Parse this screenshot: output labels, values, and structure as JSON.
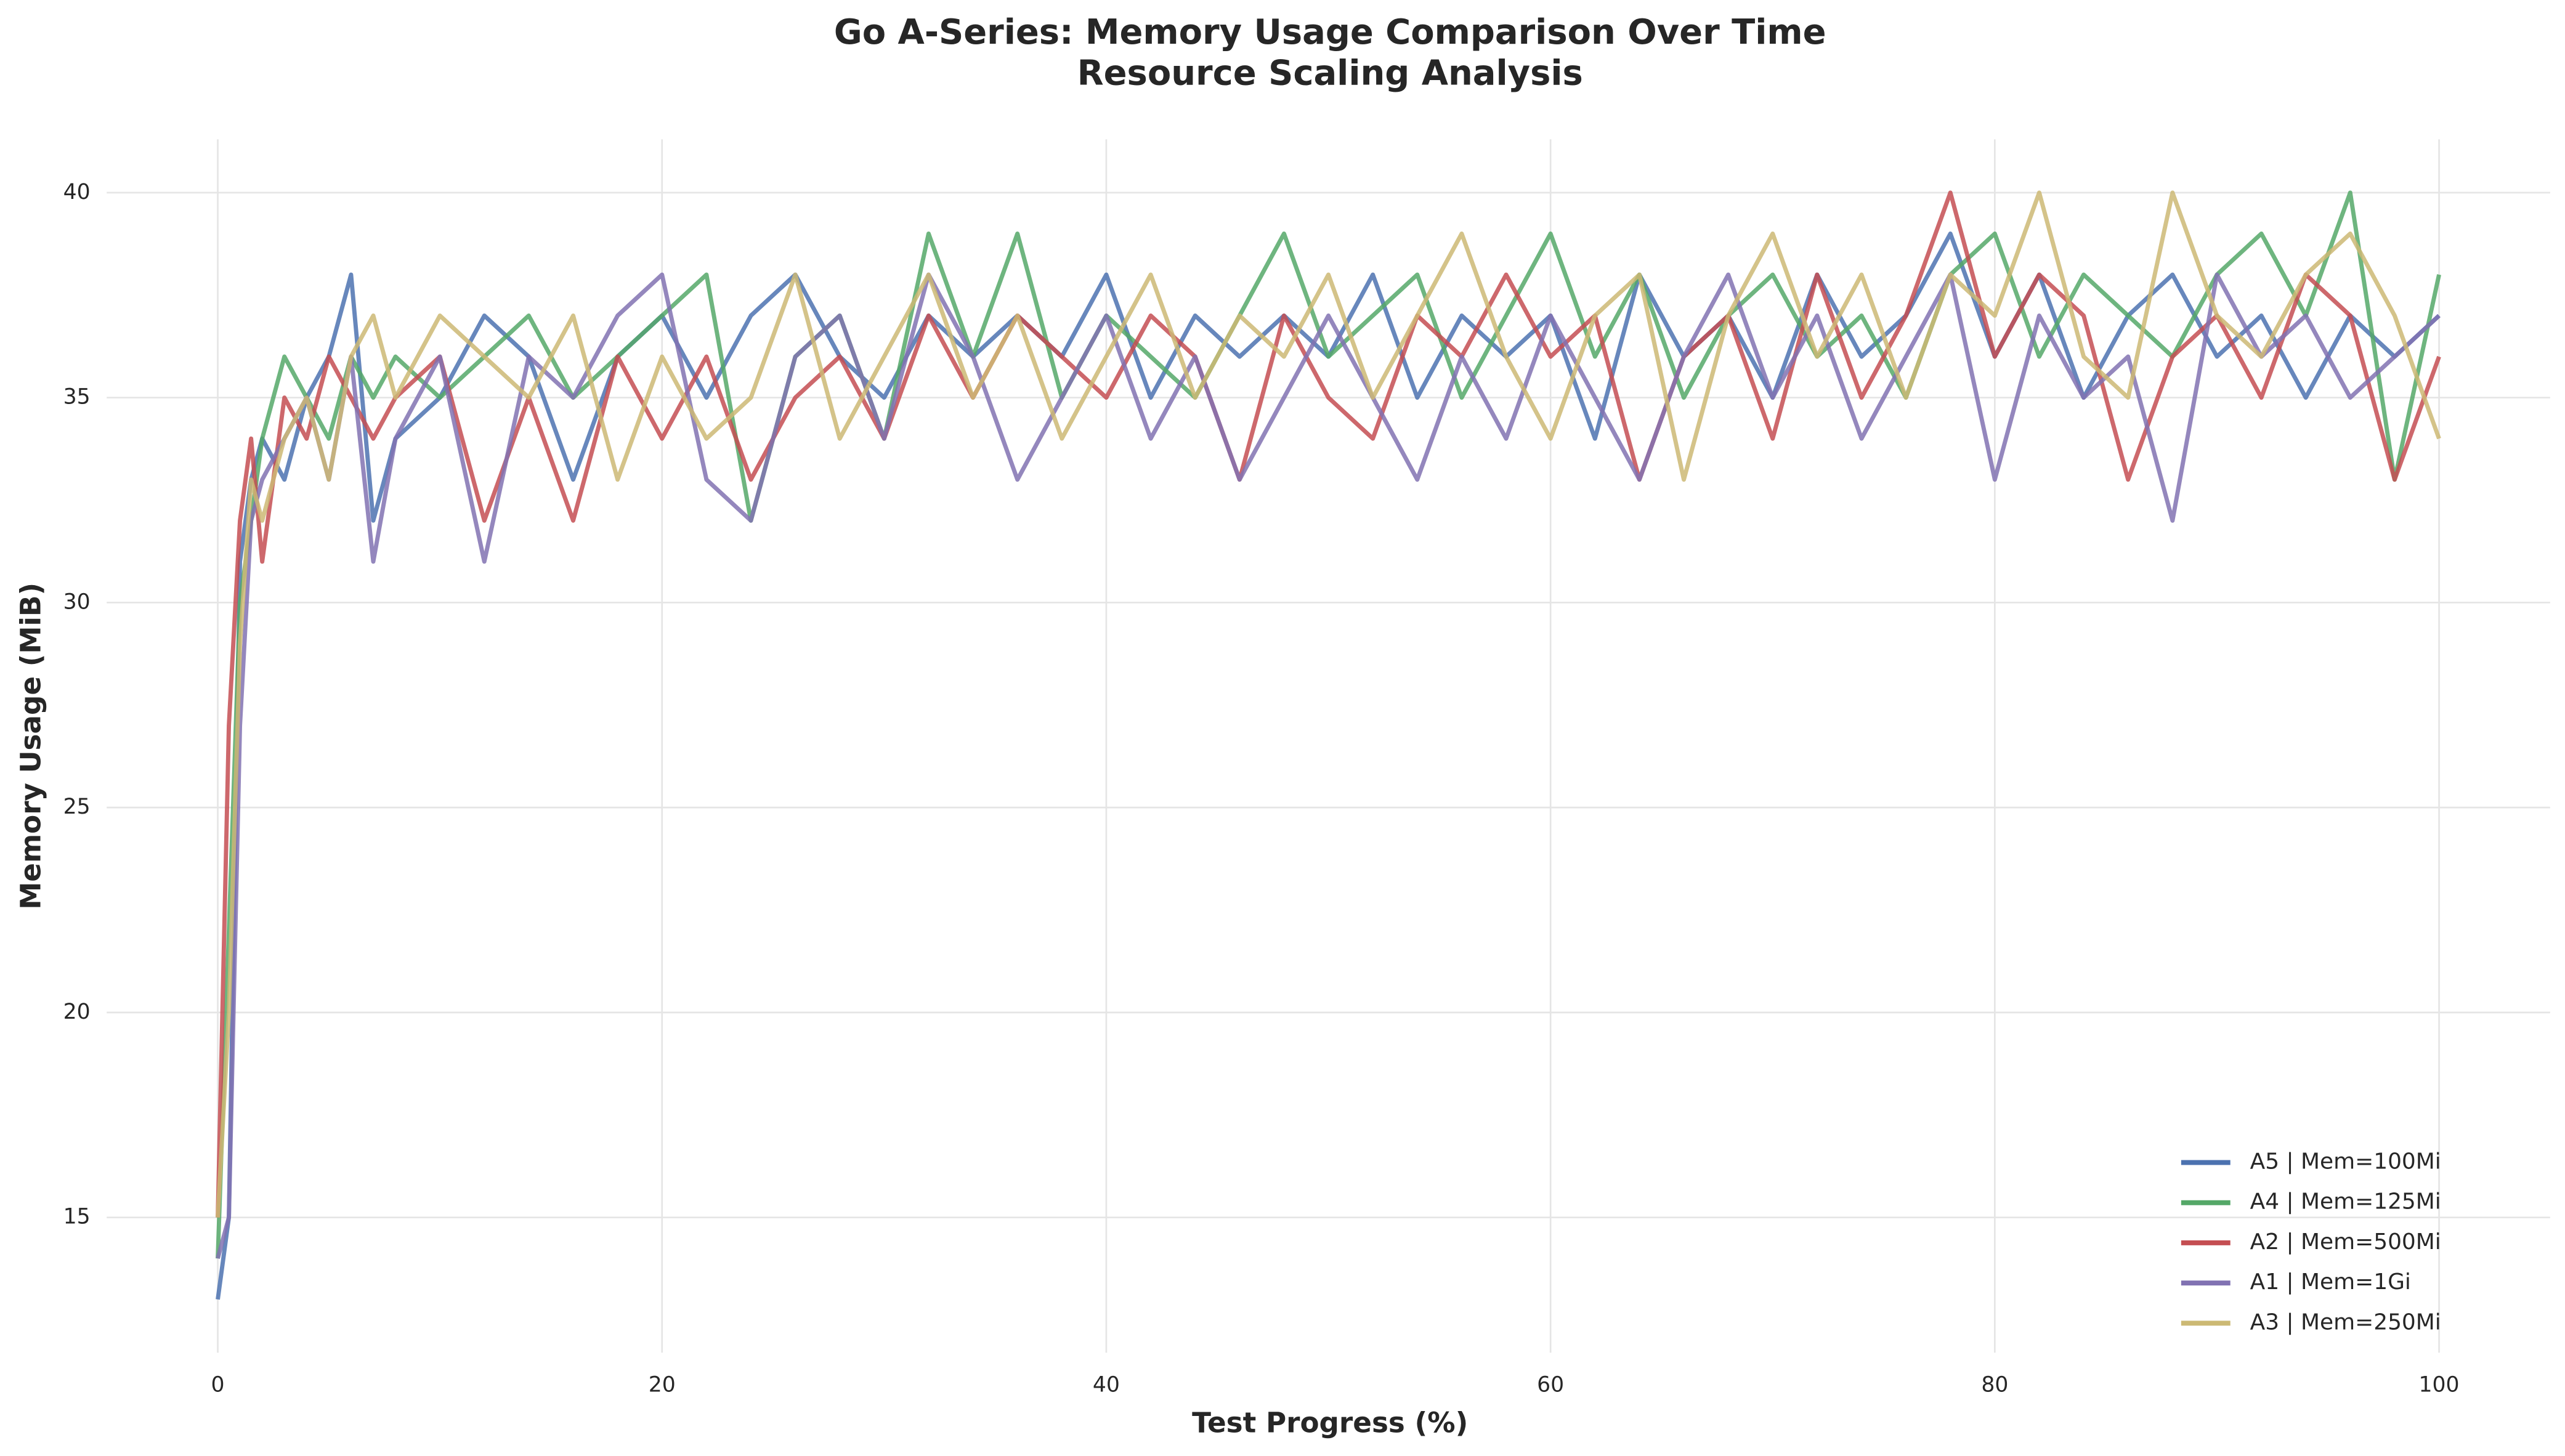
{
  "chart_data": {
    "type": "line",
    "title": "Go A-Series: Memory Usage Comparison Over Time",
    "subtitle": "Resource Scaling Analysis",
    "x_label": "Test Progress (%)",
    "y_label": "Memory Usage (MiB)",
    "x": [
      0,
      0.5,
      1,
      1.5,
      2,
      3,
      4,
      5,
      6,
      7,
      8,
      10,
      12,
      14,
      16,
      18,
      20,
      22,
      24,
      26,
      28,
      30,
      32,
      34,
      36,
      38,
      40,
      42,
      44,
      46,
      48,
      50,
      52,
      54,
      56,
      58,
      60,
      62,
      64,
      66,
      68,
      70,
      72,
      74,
      76,
      78,
      80,
      82,
      84,
      86,
      88,
      90,
      92,
      94,
      96,
      98,
      100
    ],
    "series": [
      {
        "name": "A5 | Mem=100Mi",
        "color": "#4c72b0",
        "values": [
          13,
          15,
          31,
          33,
          34,
          33,
          35,
          36,
          38,
          32,
          34,
          35,
          37,
          36,
          33,
          36,
          37,
          35,
          37,
          38,
          36,
          35,
          37,
          36,
          37,
          36,
          38,
          35,
          37,
          36,
          37,
          36,
          38,
          35,
          37,
          36,
          37,
          34,
          38,
          36,
          37,
          35,
          38,
          36,
          37,
          39,
          36,
          38,
          35,
          37,
          38,
          36,
          37,
          35,
          37,
          36,
          37
        ]
      },
      {
        "name": "A4 | Mem=125Mi",
        "color": "#55a868",
        "values": [
          14,
          22,
          30,
          32,
          34,
          36,
          35,
          34,
          36,
          35,
          36,
          35,
          36,
          37,
          35,
          36,
          37,
          38,
          32,
          36,
          37,
          34,
          39,
          36,
          39,
          35,
          37,
          36,
          35,
          37,
          39,
          36,
          37,
          38,
          35,
          37,
          39,
          36,
          38,
          35,
          37,
          38,
          36,
          37,
          35,
          38,
          39,
          36,
          38,
          37,
          36,
          38,
          39,
          37,
          40,
          33,
          38
        ]
      },
      {
        "name": "A2 | Mem=500Mi",
        "color": "#c44e52",
        "values": [
          15,
          27,
          32,
          34,
          31,
          35,
          34,
          36,
          35,
          34,
          35,
          36,
          32,
          35,
          32,
          36,
          34,
          36,
          33,
          35,
          36,
          34,
          37,
          35,
          37,
          36,
          35,
          37,
          36,
          33,
          37,
          35,
          34,
          37,
          36,
          38,
          36,
          37,
          33,
          36,
          37,
          34,
          38,
          35,
          37,
          40,
          36,
          38,
          37,
          33,
          36,
          37,
          35,
          38,
          37,
          33,
          36
        ]
      },
      {
        "name": "A1 | Mem=1Gi",
        "color": "#8172b2",
        "values": [
          14,
          15,
          27,
          32,
          33,
          34,
          35,
          33,
          36,
          31,
          34,
          36,
          31,
          36,
          35,
          37,
          38,
          33,
          32,
          36,
          37,
          34,
          38,
          36,
          33,
          35,
          37,
          34,
          36,
          33,
          35,
          37,
          35,
          33,
          36,
          34,
          37,
          35,
          33,
          36,
          38,
          35,
          37,
          34,
          36,
          38,
          33,
          37,
          35,
          36,
          32,
          38,
          36,
          37,
          35,
          36,
          37
        ]
      },
      {
        "name": "A3 | Mem=250Mi",
        "color": "#ccb974",
        "values": [
          15,
          20,
          29,
          33,
          32,
          34,
          35,
          33,
          36,
          37,
          35,
          37,
          36,
          35,
          37,
          33,
          36,
          34,
          35,
          38,
          34,
          36,
          38,
          35,
          37,
          34,
          36,
          38,
          35,
          37,
          36,
          38,
          35,
          37,
          39,
          36,
          34,
          37,
          38,
          33,
          37,
          39,
          36,
          38,
          35,
          38,
          37,
          40,
          36,
          35,
          40,
          37,
          36,
          38,
          39,
          37,
          34
        ]
      }
    ],
    "xlim": [
      -5,
      105
    ],
    "ylim": [
      11.7,
      41.3
    ],
    "xticks": [
      0,
      20,
      40,
      60,
      80,
      100
    ],
    "yticks": [
      15,
      20,
      25,
      30,
      35,
      40
    ],
    "grid": true,
    "legend_loc": "lower right"
  }
}
